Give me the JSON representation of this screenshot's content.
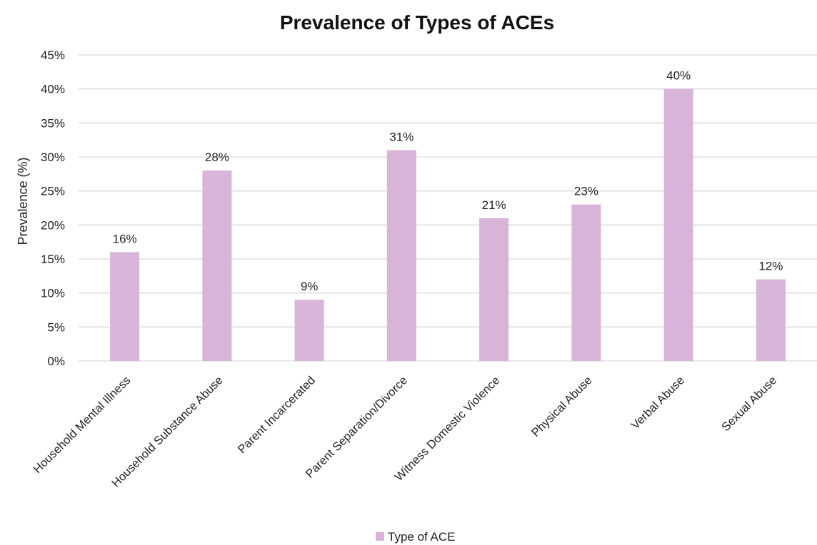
{
  "chart_data": {
    "type": "bar",
    "title": "Prevalence of Types of ACEs",
    "xlabel": "",
    "ylabel": "Prevalence (%)",
    "categories": [
      "Household Mental Illness",
      "Household Substance Abuse",
      "Parent Incarcerated",
      "Parent Separation/Divorce",
      "Witness Domestic Violence",
      "Physical Abuse",
      "Verbal Abuse",
      "Sexual Abuse"
    ],
    "series": [
      {
        "name": "Type of ACE",
        "values": [
          16,
          28,
          9,
          31,
          21,
          23,
          40,
          12
        ],
        "data_labels": [
          "16%",
          "28%",
          "9%",
          "31%",
          "21%",
          "23%",
          "40%",
          "12%"
        ],
        "color": "#d8b4d8"
      }
    ],
    "ylim": [
      0,
      45
    ],
    "y_ticks": [
      0,
      5,
      10,
      15,
      20,
      25,
      30,
      35,
      40,
      45
    ],
    "y_tick_labels": [
      "0%",
      "5%",
      "10%",
      "15%",
      "20%",
      "25%",
      "30%",
      "35%",
      "40%",
      "45%"
    ],
    "grid": true,
    "gridline_color": "#d9d9d9",
    "legend_position": "bottom-center"
  }
}
